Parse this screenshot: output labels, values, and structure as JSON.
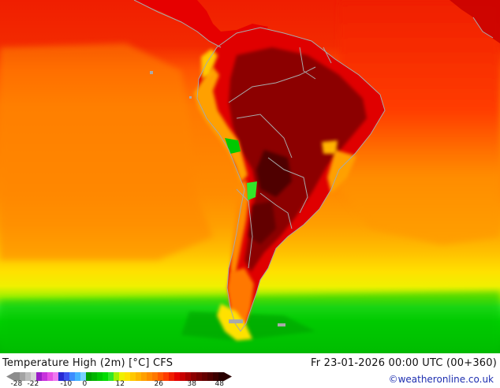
{
  "map": {
    "title_parts": [
      "Temperature High (2m) [°C]",
      "CFS"
    ],
    "valid_time": "Fr 23-01-2026 00:00 UTC (00+360)",
    "credit": "©weatheronline.co.uk",
    "region": "South America"
  },
  "legend": {
    "unit": "°C",
    "tick_labels": [
      "-28",
      "-22",
      "-10",
      "0",
      "12",
      "26",
      "38",
      "48"
    ],
    "swatches": [
      {
        "value": "-28",
        "color": "#8c8c8c"
      },
      {
        "value": "-26",
        "color": "#a3a3a3"
      },
      {
        "value": "-24",
        "color": "#bdbdbd"
      },
      {
        "value": "-22",
        "color": "#d6d6d6"
      },
      {
        "value": "-20",
        "color": "#9b1ec8"
      },
      {
        "value": "-18",
        "color": "#c832dc"
      },
      {
        "value": "-16",
        "color": "#e650e6"
      },
      {
        "value": "-14",
        "color": "#f078f0"
      },
      {
        "value": "-12",
        "color": "#2828d2"
      },
      {
        "value": "-10",
        "color": "#3c50f0"
      },
      {
        "value": "-8",
        "color": "#3c8cff"
      },
      {
        "value": "-6",
        "color": "#46b4ff"
      },
      {
        "value": "-4",
        "color": "#78d2ff"
      },
      {
        "value": "0",
        "color": "#00a000"
      },
      {
        "value": "2",
        "color": "#00b400"
      },
      {
        "value": "4",
        "color": "#00c800"
      },
      {
        "value": "6",
        "color": "#00dc00"
      },
      {
        "value": "8",
        "color": "#32e628"
      },
      {
        "value": "10",
        "color": "#a0f000"
      },
      {
        "value": "12",
        "color": "#f0f000"
      },
      {
        "value": "14",
        "color": "#ffe100"
      },
      {
        "value": "16",
        "color": "#ffc800"
      },
      {
        "value": "18",
        "color": "#ffb400"
      },
      {
        "value": "20",
        "color": "#ffa000"
      },
      {
        "value": "22",
        "color": "#ff8c00"
      },
      {
        "value": "24",
        "color": "#ff7800"
      },
      {
        "value": "26",
        "color": "#ff5a00"
      },
      {
        "value": "28",
        "color": "#ff3c00"
      },
      {
        "value": "30",
        "color": "#f01e00"
      },
      {
        "value": "32",
        "color": "#e60000"
      },
      {
        "value": "34",
        "color": "#c80000"
      },
      {
        "value": "36",
        "color": "#aa0000"
      },
      {
        "value": "38",
        "color": "#8c0000"
      },
      {
        "value": "40",
        "color": "#780000"
      },
      {
        "value": "42",
        "color": "#640000"
      },
      {
        "value": "44",
        "color": "#500000"
      },
      {
        "value": "46",
        "color": "#3c0000"
      },
      {
        "value": "48",
        "color": "#280000"
      }
    ]
  },
  "colors": {
    "ocean_north": "#f31d05",
    "ocean_mid": "#ff8100",
    "ocean_south": "#00c800",
    "land_hot": "#8c0000",
    "border": "#a9a9a9"
  }
}
